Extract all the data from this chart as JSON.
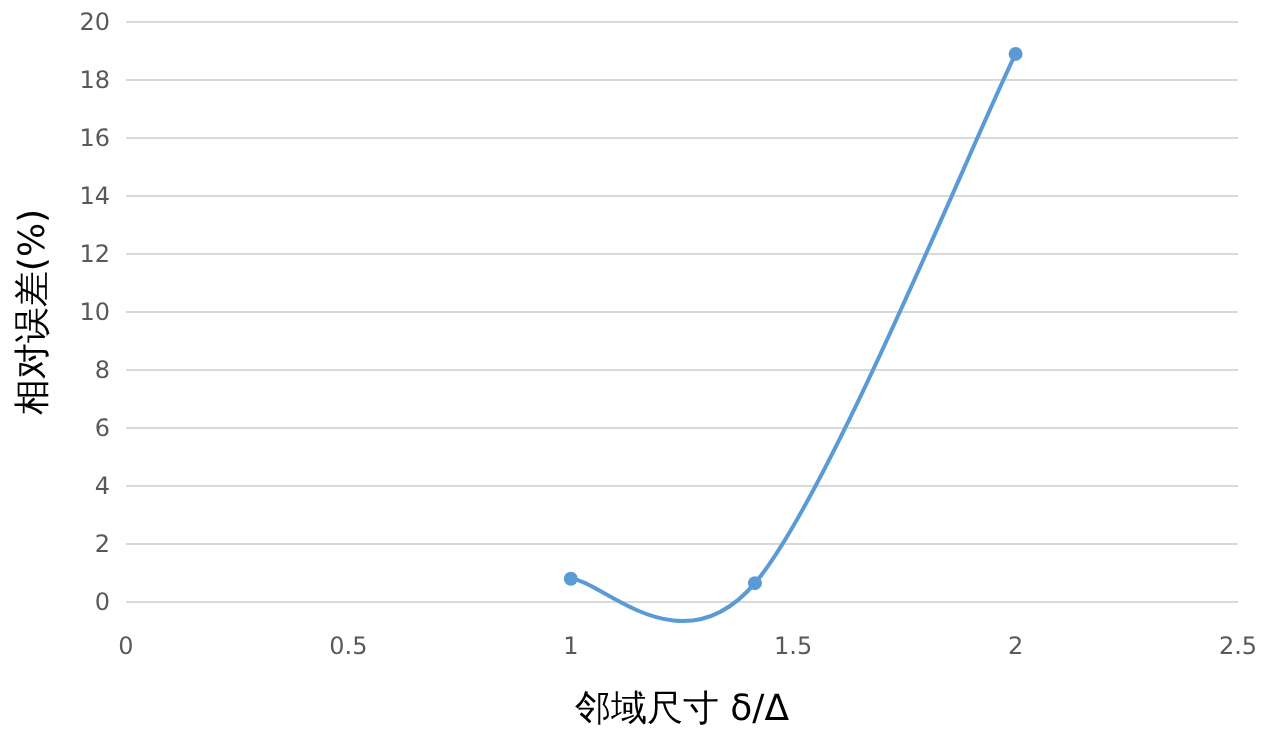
{
  "chart_data": {
    "type": "line",
    "xlabel": "邻域尺寸 δ/Δ",
    "ylabel": "相对误差(%)",
    "x": [
      1,
      1.414,
      2
    ],
    "series": [
      {
        "color": "#5b9bd5",
        "values": [
          0.8,
          0.65,
          18.9
        ]
      }
    ],
    "xlim": [
      0,
      2.5
    ],
    "xticks": [
      0,
      0.5,
      1,
      1.5,
      2,
      2.5
    ],
    "ylim": [
      0,
      20
    ],
    "yticks": [
      0,
      2,
      4,
      6,
      8,
      10,
      12,
      14,
      16,
      18,
      20
    ],
    "grid": "y",
    "marker": "circle",
    "line_style": "solid"
  }
}
